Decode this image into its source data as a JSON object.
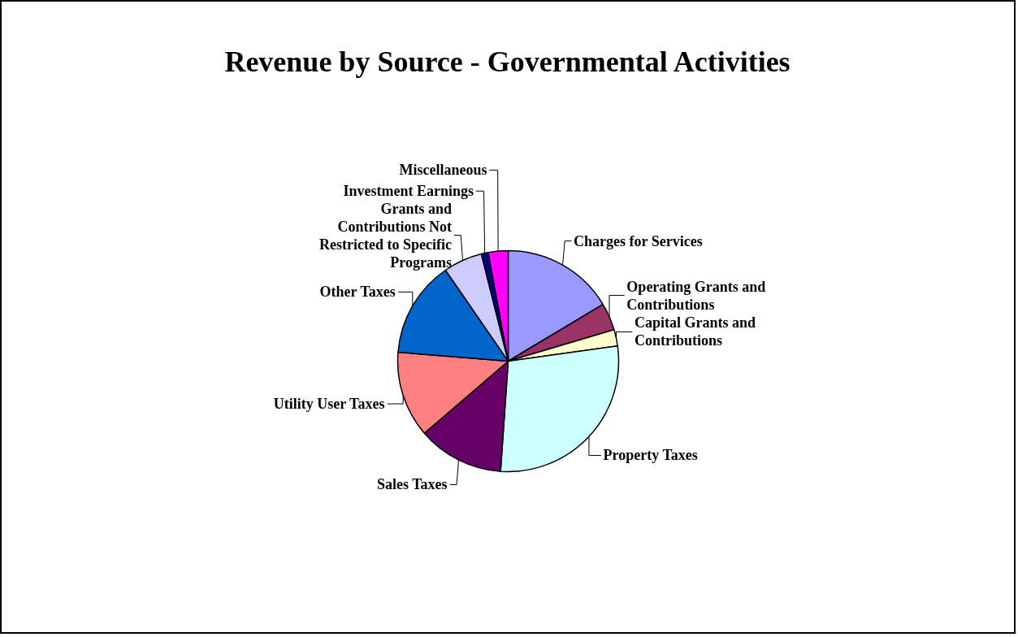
{
  "chart_data": {
    "type": "pie",
    "title": "Revenue by Source - Governmental Activities",
    "categories": [
      "Charges for Services",
      "Operating Grants and Contributions",
      "Capital Grants and Contributions",
      "Property Taxes",
      "Sales Taxes",
      "Utility User Taxes",
      "Other Taxes",
      "Grants and Contributions Not Restricted to Specific Programs",
      "Investment Earnings",
      "Miscellaneous"
    ],
    "values": [
      16.4,
      4,
      2.4,
      28.3,
      12.6,
      12.6,
      14.1,
      5.7,
      1,
      2.9
    ],
    "colors": [
      "#9999ff",
      "#993366",
      "#ffffcc",
      "#ccffff",
      "#660066",
      "#ff8080",
      "#0066cc",
      "#ccccff",
      "#000080",
      "#ff00ff"
    ]
  }
}
